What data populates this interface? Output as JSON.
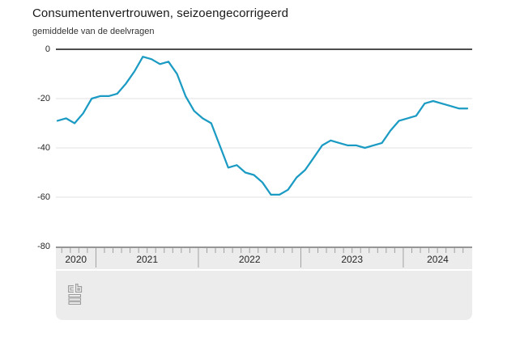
{
  "header": {
    "title": "Consumentenvertrouwen, seizoengecorrigeerd",
    "subtitle": "gemiddelde van de deelvragen"
  },
  "chart_data": {
    "type": "line",
    "title": "Consumentenvertrouwen, seizoengecorrigeerd",
    "subtitle": "gemiddelde van de deelvragen",
    "x": {
      "frequency": "monthly",
      "start": "2020-08",
      "end": "2024-08"
    },
    "series": [
      {
        "name": "consumentenvertrouwen",
        "values": [
          -29,
          -28,
          -30,
          -26,
          -20,
          -19,
          -19,
          -18,
          -14,
          -9,
          -3,
          -4,
          -6,
          -5,
          -10,
          -19,
          -25,
          -28,
          -30,
          -39,
          -48,
          -47,
          -50,
          -51,
          -54,
          -59,
          -59,
          -57,
          -52,
          -49,
          -44,
          -39,
          -37,
          -38,
          -39,
          -39,
          -40,
          -39,
          -38,
          -33,
          -29,
          -28,
          -27,
          -22,
          -21,
          -22,
          -23,
          -24,
          -24
        ]
      }
    ],
    "ylim": [
      -80,
      0
    ],
    "yticks": [
      0,
      -20,
      -40,
      -60,
      -80
    ],
    "ytick_labels": [
      "0",
      "-20",
      "-40",
      "-60",
      "-80"
    ],
    "year_labels": [
      "2020",
      "2021",
      "2022",
      "2023",
      "2024"
    ],
    "grid": true,
    "legend": "none"
  },
  "footer": {
    "logo": "cbs-logo"
  },
  "colors": {
    "line": "#1b9bc3",
    "zero_line": "#4d4d4d",
    "grid": "#e0e0e0",
    "band": "#ececec",
    "band_axis": "#969696",
    "tick": "#a0a0a0",
    "logo": "#9b9b9b",
    "text": "#1a1a1a"
  }
}
